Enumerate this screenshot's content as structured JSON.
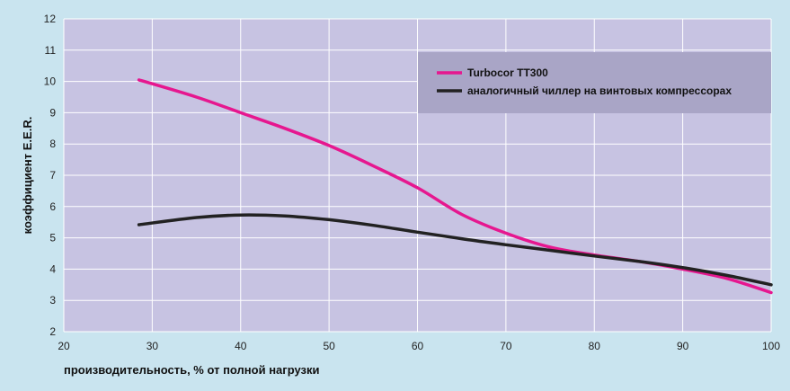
{
  "chart_data": {
    "type": "line",
    "xlabel": "производительность, % от полной нагрузки",
    "ylabel": "коэффициент E.E.R.",
    "xlim": [
      20,
      100
    ],
    "ylim": [
      2,
      12
    ],
    "xticks": [
      20,
      30,
      40,
      50,
      60,
      70,
      80,
      90,
      100
    ],
    "yticks": [
      2,
      3,
      4,
      5,
      6,
      7,
      8,
      9,
      10,
      11,
      12
    ],
    "grid": true,
    "legend_position": "top-right",
    "series": [
      {
        "name": "Turbocor TT300",
        "color": "#e6178f",
        "x": [
          28.5,
          35,
          40,
          45,
          50,
          55,
          60,
          65,
          70,
          75,
          80,
          85,
          90,
          95,
          100
        ],
        "y": [
          10.05,
          9.5,
          9.0,
          8.5,
          7.95,
          7.3,
          6.6,
          5.75,
          5.15,
          4.7,
          4.45,
          4.25,
          4.0,
          3.7,
          3.25
        ]
      },
      {
        "name": "аналогичный чиллер на винтовых компрессорах",
        "color": "#222222",
        "x": [
          28.5,
          35,
          40,
          45,
          50,
          55,
          60,
          65,
          70,
          75,
          80,
          85,
          90,
          95,
          100
        ],
        "y": [
          5.42,
          5.65,
          5.73,
          5.7,
          5.58,
          5.4,
          5.18,
          4.97,
          4.78,
          4.6,
          4.42,
          4.25,
          4.05,
          3.8,
          3.5
        ]
      }
    ]
  }
}
